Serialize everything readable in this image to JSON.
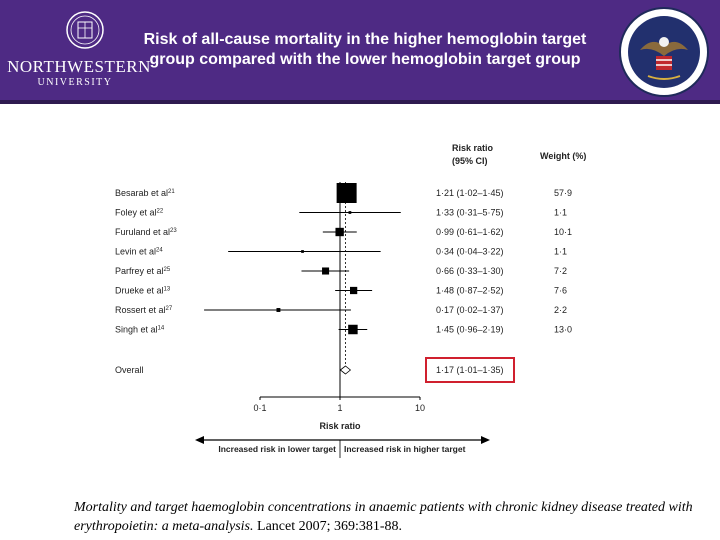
{
  "header": {
    "title": "Risk of all-cause mortality in the higher hemoglobin target group compared with the lower hemoglobin target group",
    "left_logo_name": "NORTHWESTERN",
    "left_logo_sub": "UNIVERSITY",
    "colors": {
      "header_bg": "#4e2a84",
      "highlight_box": "#d0202e"
    }
  },
  "chart_data": {
    "type": "forest",
    "col_headers": {
      "ratio_line1": "Risk ratio",
      "ratio_line2": "(95% CI)",
      "weight": "Weight (%)"
    },
    "studies": [
      {
        "label": "Besarab et al",
        "ref": "21",
        "rr": 1.21,
        "lo": 1.02,
        "hi": 1.45,
        "ci_text": "1·21 (1·02–1·45)",
        "weight": 57.9,
        "weight_text": "57·9"
      },
      {
        "label": "Foley et al",
        "ref": "22",
        "rr": 1.33,
        "lo": 0.31,
        "hi": 5.75,
        "ci_text": "1·33 (0·31–5·75)",
        "weight": 1.1,
        "weight_text": "1·1"
      },
      {
        "label": "Furuland et al",
        "ref": "23",
        "rr": 0.99,
        "lo": 0.61,
        "hi": 1.62,
        "ci_text": "0·99 (0·61–1·62)",
        "weight": 10.1,
        "weight_text": "10·1"
      },
      {
        "label": "Levin et al",
        "ref": "24",
        "rr": 0.34,
        "lo": 0.04,
        "hi": 3.22,
        "ci_text": "0·34 (0·04–3·22)",
        "weight": 1.1,
        "weight_text": "1·1"
      },
      {
        "label": "Parfrey et al",
        "ref": "25",
        "rr": 0.66,
        "lo": 0.33,
        "hi": 1.3,
        "ci_text": "0·66 (0·33–1·30)",
        "weight": 7.2,
        "weight_text": "7·2"
      },
      {
        "label": "Drueke et al",
        "ref": "13",
        "rr": 1.48,
        "lo": 0.87,
        "hi": 2.52,
        "ci_text": "1·48 (0·87–2·52)",
        "weight": 7.6,
        "weight_text": "7·6"
      },
      {
        "label": "Rossert et al",
        "ref": "27",
        "rr": 0.17,
        "lo": 0.02,
        "hi": 1.37,
        "ci_text": "0·17 (0·02–1·37)",
        "weight": 2.2,
        "weight_text": "2·2"
      },
      {
        "label": "Singh et al",
        "ref": "14",
        "rr": 1.45,
        "lo": 0.96,
        "hi": 2.19,
        "ci_text": "1·45 (0·96–2·19)",
        "weight": 13.0,
        "weight_text": "13·0"
      }
    ],
    "overall": {
      "label": "Overall",
      "rr": 1.17,
      "lo": 1.01,
      "hi": 1.35,
      "ci_text": "1·17 (1·01–1·35)"
    },
    "x_scale": "log",
    "xlim": [
      0.1,
      10
    ],
    "x_ticks": [
      0.1,
      1,
      10
    ],
    "x_tick_labels": [
      "0·1",
      "1",
      "10"
    ],
    "xlabel": "Risk ratio",
    "arrow_left_label": "Increased risk in lower target",
    "arrow_right_label": "Increased risk in higher target"
  },
  "caption": {
    "italic": "Mortality and target haemoglobin concentrations in anaemic patients with chronic kidney disease treated with erythropoietin: a meta-analysis.",
    "regular": " Lancet 2007; 369:381-88."
  }
}
